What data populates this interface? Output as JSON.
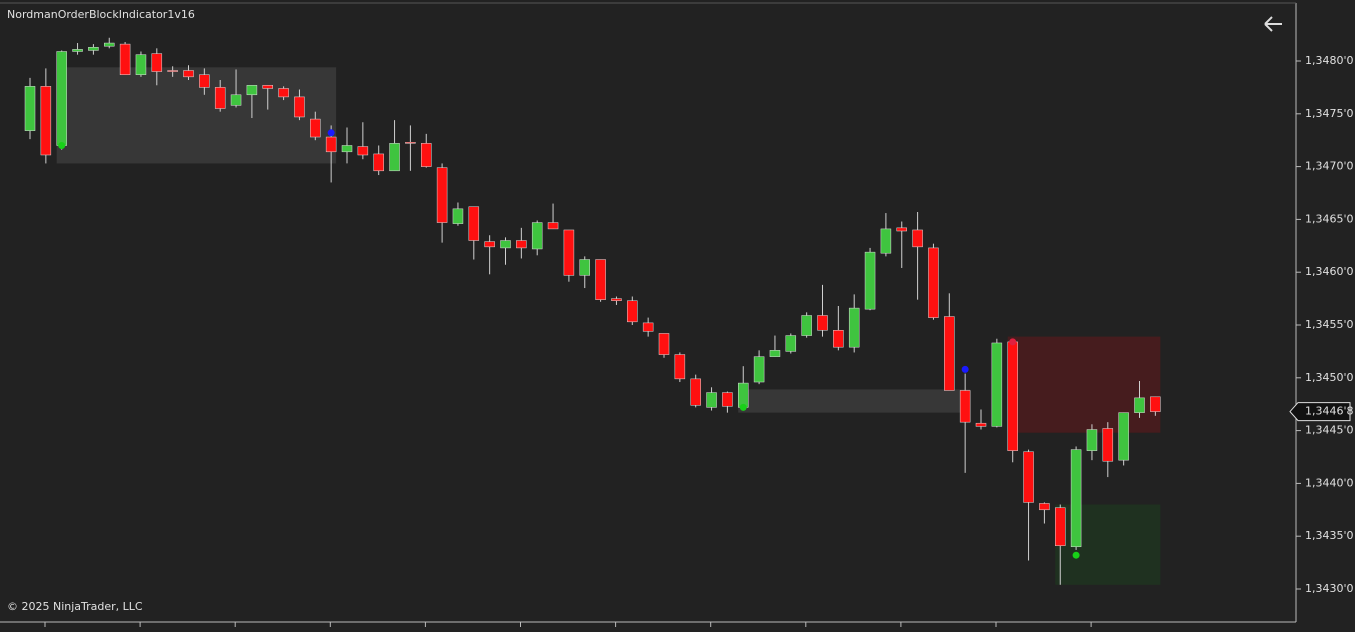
{
  "chart_data": {
    "type": "candlestick",
    "title": "NordmanOrderBlockIndicator1v16",
    "copyright": "© 2025 NinjaTrader, LLC",
    "open": [
      1.34734,
      1.34776,
      1.3472,
      1.34809,
      1.3481,
      1.34814,
      1.34816,
      1.34787,
      1.34807,
      1.34791,
      1.34791,
      1.34787,
      1.34775,
      1.34758,
      1.34768,
      1.34777,
      1.34774,
      1.34766,
      1.34745,
      1.34728,
      1.34714,
      1.34719,
      1.34712,
      1.34696,
      1.34723,
      1.34722,
      1.34699,
      1.34646,
      1.34662,
      1.34629,
      1.34623,
      1.3463,
      1.34622,
      1.34647,
      1.3464,
      1.34597,
      1.34612,
      1.34575,
      1.34573,
      1.34552,
      1.34542,
      1.34522,
      1.34499,
      1.34472,
      1.34486,
      1.34472,
      1.34496,
      1.3452,
      1.34525,
      1.3454,
      1.34559,
      1.34545,
      1.34529,
      1.34565,
      1.34618,
      1.34642,
      1.3464,
      1.34623,
      1.34558,
      1.34488,
      1.34457,
      1.34454,
      1.34534,
      1.3443,
      1.34381,
      1.34377,
      1.3434,
      1.34431,
      1.34452,
      1.34422,
      1.34467,
      1.34482
    ],
    "high": [
      1.34784,
      1.34793,
      1.3481,
      1.34817,
      1.34816,
      1.34822,
      1.34818,
      1.34809,
      1.34812,
      1.34795,
      1.34796,
      1.34793,
      1.34782,
      1.34792,
      1.34777,
      1.34777,
      1.34776,
      1.34773,
      1.34752,
      1.34739,
      1.34737,
      1.34742,
      1.3472,
      1.34744,
      1.34739,
      1.34731,
      1.34703,
      1.34666,
      1.34662,
      1.34635,
      1.34633,
      1.34642,
      1.34649,
      1.34665,
      1.3464,
      1.34615,
      1.34612,
      1.34577,
      1.34577,
      1.34557,
      1.34542,
      1.34524,
      1.34503,
      1.34491,
      1.34487,
      1.34511,
      1.34526,
      1.3454,
      1.34542,
      1.34562,
      1.34588,
      1.34568,
      1.34579,
      1.34623,
      1.34656,
      1.34648,
      1.34657,
      1.34627,
      1.3458,
      1.34504,
      1.3447,
      1.34537,
      1.34536,
      1.34432,
      1.34382,
      1.3438,
      1.34435,
      1.34456,
      1.34458,
      1.34467,
      1.34497,
      1.34482
    ],
    "low": [
      1.34726,
      1.34703,
      1.34716,
      1.34806,
      1.34806,
      1.34812,
      1.34787,
      1.34785,
      1.34777,
      1.34785,
      1.34782,
      1.34768,
      1.34752,
      1.34756,
      1.34746,
      1.34754,
      1.34763,
      1.34744,
      1.34725,
      1.34685,
      1.34703,
      1.34707,
      1.34692,
      1.34696,
      1.34696,
      1.34699,
      1.34628,
      1.34644,
      1.34612,
      1.34598,
      1.34607,
      1.34613,
      1.34616,
      1.34641,
      1.34591,
      1.34585,
      1.34572,
      1.34569,
      1.3455,
      1.34539,
      1.34519,
      1.34496,
      1.34472,
      1.34469,
      1.34467,
      1.34469,
      1.34494,
      1.3452,
      1.34523,
      1.34538,
      1.34539,
      1.34526,
      1.34524,
      1.34564,
      1.34615,
      1.34604,
      1.34574,
      1.34555,
      1.34488,
      1.3441,
      1.34451,
      1.34453,
      1.3442,
      1.34327,
      1.34362,
      1.34304,
      1.34337,
      1.34422,
      1.34406,
      1.34417,
      1.34462,
      1.34464
    ],
    "close": [
      1.34776,
      1.34711,
      1.34809,
      1.34811,
      1.34813,
      1.34817,
      1.34787,
      1.34806,
      1.3479,
      1.3479,
      1.34785,
      1.34775,
      1.34755,
      1.34768,
      1.34777,
      1.34774,
      1.34766,
      1.34747,
      1.34728,
      1.34714,
      1.3472,
      1.34711,
      1.34696,
      1.34722,
      1.34722,
      1.347,
      1.34647,
      1.3466,
      1.3463,
      1.34624,
      1.3463,
      1.34623,
      1.34647,
      1.34641,
      1.34597,
      1.34612,
      1.34574,
      1.34573,
      1.34553,
      1.34544,
      1.34522,
      1.34499,
      1.34474,
      1.34486,
      1.34473,
      1.34495,
      1.3452,
      1.34526,
      1.3454,
      1.34559,
      1.34545,
      1.34529,
      1.34566,
      1.34619,
      1.34641,
      1.34639,
      1.34624,
      1.34557,
      1.34488,
      1.34458,
      1.34454,
      1.34533,
      1.34431,
      1.34382,
      1.34375,
      1.34341,
      1.34432,
      1.34451,
      1.34421,
      1.34467,
      1.34481,
      1.34468
    ],
    "up_color": "#3fc43f",
    "down_color": "#ff1010",
    "wick_color": "#d0d0d0",
    "zones": [
      {
        "start": 2,
        "end": 19,
        "top": 1.34794,
        "bottom": 1.34703,
        "color": "#3a3a3a"
      },
      {
        "start": 45,
        "end": 59,
        "top": 1.34489,
        "bottom": 1.34467,
        "color": "#3a3a3a"
      },
      {
        "start": 62,
        "end": 71,
        "top": 1.34539,
        "bottom": 1.34448,
        "color": "#4a1c1e"
      },
      {
        "start": 65,
        "end": 71,
        "top": 1.3438,
        "bottom": 1.34304,
        "color": "#1f3320"
      }
    ],
    "markers": [
      {
        "index": 2,
        "value": 1.3472,
        "color": "#18d018"
      },
      {
        "index": 19,
        "value": 1.34732,
        "color": "#1a1aff"
      },
      {
        "index": 45,
        "value": 1.34472,
        "color": "#18d018"
      },
      {
        "index": 59,
        "value": 1.34508,
        "color": "#1a1aff"
      },
      {
        "index": 62,
        "value": 1.34534,
        "color": "#e02040"
      },
      {
        "index": 66,
        "value": 1.34332,
        "color": "#18d018"
      }
    ],
    "last_price": {
      "value": 1.34468,
      "label": "1,3446'8"
    },
    "ylim": [
      1.3427,
      1.3486
    ],
    "yticks": [
      {
        "value": 1.348,
        "label": "1,3480'0"
      },
      {
        "value": 1.3475,
        "label": "1,3475'0"
      },
      {
        "value": 1.347,
        "label": "1,3470'0"
      },
      {
        "value": 1.3465,
        "label": "1,3465'0"
      },
      {
        "value": 1.346,
        "label": "1,3460'0"
      },
      {
        "value": 1.3455,
        "label": "1,3455'0"
      },
      {
        "value": 1.345,
        "label": "1,3450'0"
      },
      {
        "value": 1.3445,
        "label": "1,3445'0"
      },
      {
        "value": 1.344,
        "label": "1,3440'0"
      },
      {
        "value": 1.3435,
        "label": "1,3435'0"
      },
      {
        "value": 1.343,
        "label": "1,3430'0"
      }
    ]
  }
}
